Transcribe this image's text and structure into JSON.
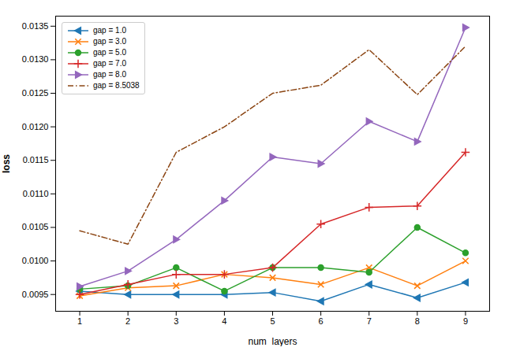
{
  "chart_data": {
    "type": "line",
    "xlabel": "num_layers",
    "ylabel": "loss",
    "x": [
      1,
      2,
      3,
      4,
      5,
      6,
      7,
      8,
      9
    ],
    "series": [
      {
        "name": "gap = 1.0",
        "color": "#1f77b4",
        "marker": "triangle_left",
        "line_style": "solid",
        "values": [
          0.00955,
          0.0095,
          0.0095,
          0.0095,
          0.00953,
          0.0094,
          0.00965,
          0.00945,
          0.00968
        ]
      },
      {
        "name": "gap = 3.0",
        "color": "#ff7f0e",
        "marker": "x",
        "line_style": "solid",
        "values": [
          0.00948,
          0.0096,
          0.00963,
          0.0098,
          0.00975,
          0.00965,
          0.0099,
          0.00963,
          0.01
        ]
      },
      {
        "name": "gap = 5.0",
        "color": "#2ca02c",
        "marker": "circle",
        "line_style": "solid",
        "values": [
          0.00958,
          0.00963,
          0.0099,
          0.00955,
          0.0099,
          0.0099,
          0.00983,
          0.0105,
          0.01012
        ]
      },
      {
        "name": "gap = 7.0",
        "color": "#d62728",
        "marker": "plus",
        "line_style": "solid",
        "values": [
          0.0095,
          0.00965,
          0.0098,
          0.0098,
          0.0099,
          0.01055,
          0.0108,
          0.01082,
          0.01162
        ]
      },
      {
        "name": "gap = 8.0",
        "color": "#9467bd",
        "marker": "triangle_right",
        "line_style": "solid",
        "values": [
          0.00962,
          0.00985,
          0.01032,
          0.0109,
          0.01155,
          0.01145,
          0.01208,
          0.01178,
          0.01348
        ]
      },
      {
        "name": "gap = 8.5038",
        "color": "#8B4513",
        "line_style": "dashdot",
        "values": [
          0.01045,
          0.01025,
          0.01162,
          0.012,
          0.0125,
          0.01262,
          0.01315,
          0.01248,
          0.0132
        ]
      }
    ],
    "xlim": [
      0.5,
      9.5
    ],
    "xticks": [
      1,
      2,
      3,
      4,
      5,
      6,
      7,
      8,
      9
    ],
    "ylim": [
      0.00925,
      0.01365
    ],
    "yticks": [
      0.0095,
      {
        "value": 0.01,
        "label": "0.0100"
      },
      0.0105,
      {
        "value": 0.011,
        "label": "0.0110"
      },
      0.0115,
      {
        "value": 0.012,
        "label": "0.0120"
      },
      0.0125,
      {
        "value": 0.013,
        "label": "0.0130"
      },
      0.0135
    ],
    "grid": false,
    "legend": "upper left"
  }
}
